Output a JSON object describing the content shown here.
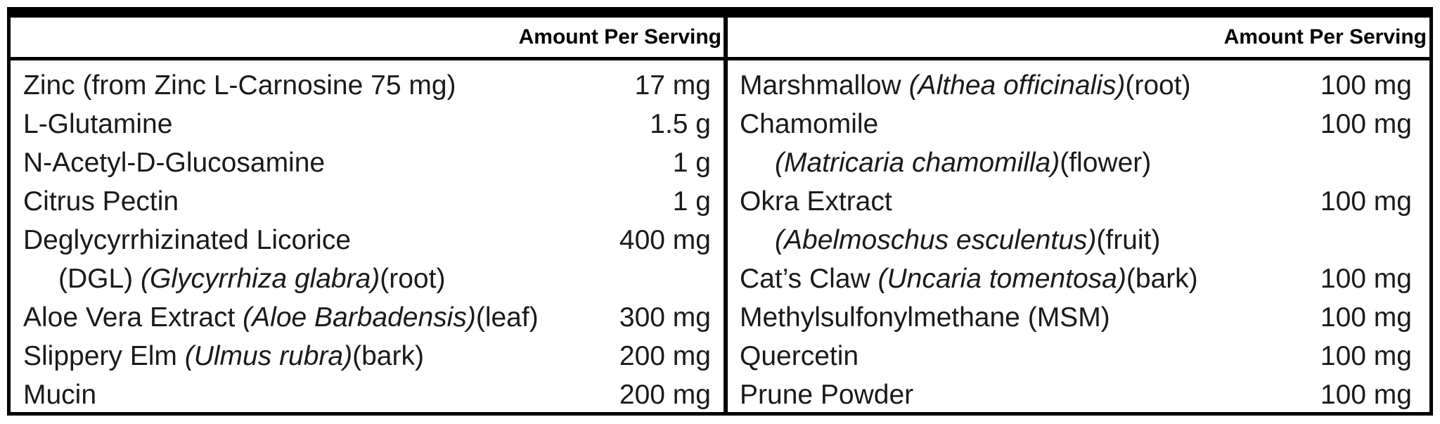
{
  "header": "Amount Per Serving",
  "left": [
    {
      "name": "Zinc (from Zinc L-Carnosine 75 mg)",
      "latin": "",
      "part": "",
      "amount": "17 mg"
    },
    {
      "name": "L-Glutamine",
      "latin": "",
      "part": "",
      "amount": "1.5 g"
    },
    {
      "name": "N-Acetyl-D-Glucosamine",
      "latin": "",
      "part": "",
      "amount": "1 g"
    },
    {
      "name": "Citrus Pectin",
      "latin": "",
      "part": "",
      "amount": "1 g"
    },
    {
      "name": "Deglycyrrhizinated Licorice",
      "latin": "",
      "part": "",
      "amount": "400 mg"
    },
    {
      "name": "(DGL) ",
      "latin": "(Glycyrrhiza glabra)",
      "part": "(root)",
      "amount": "",
      "indent": true
    },
    {
      "name": "Aloe Vera Extract ",
      "latin": "(Aloe Barbadensis)",
      "part": "(leaf)",
      "amount": "300 mg"
    },
    {
      "name": "Slippery Elm ",
      "latin": "(Ulmus rubra)",
      "part": "(bark)",
      "amount": "200 mg"
    },
    {
      "name": "Mucin",
      "latin": "",
      "part": "",
      "amount": "200 mg"
    }
  ],
  "right": [
    {
      "name": "Marshmallow ",
      "latin": "(Althea officinalis)",
      "part": "(root)",
      "amount": "100 mg"
    },
    {
      "name": "Chamomile",
      "latin": "",
      "part": "",
      "amount": "100 mg"
    },
    {
      "name": "",
      "latin": "(Matricaria chamomilla)",
      "part": "(flower)",
      "amount": "",
      "indent": true
    },
    {
      "name": "Okra Extract",
      "latin": "",
      "part": "",
      "amount": "100 mg"
    },
    {
      "name": "",
      "latin": "(Abelmoschus esculentus)",
      "part": "(fruit)",
      "amount": "",
      "indent": true
    },
    {
      "name": "Cat’s Claw ",
      "latin": "(Uncaria tomentosa)",
      "part": "(bark)",
      "amount": "100 mg"
    },
    {
      "name": "Methylsulfonylmethane (MSM)",
      "latin": "",
      "part": "",
      "amount": "100 mg"
    },
    {
      "name": "Quercetin",
      "latin": "",
      "part": "",
      "amount": "100 mg"
    },
    {
      "name": "Prune Powder",
      "latin": "",
      "part": "",
      "amount": "100 mg"
    }
  ]
}
